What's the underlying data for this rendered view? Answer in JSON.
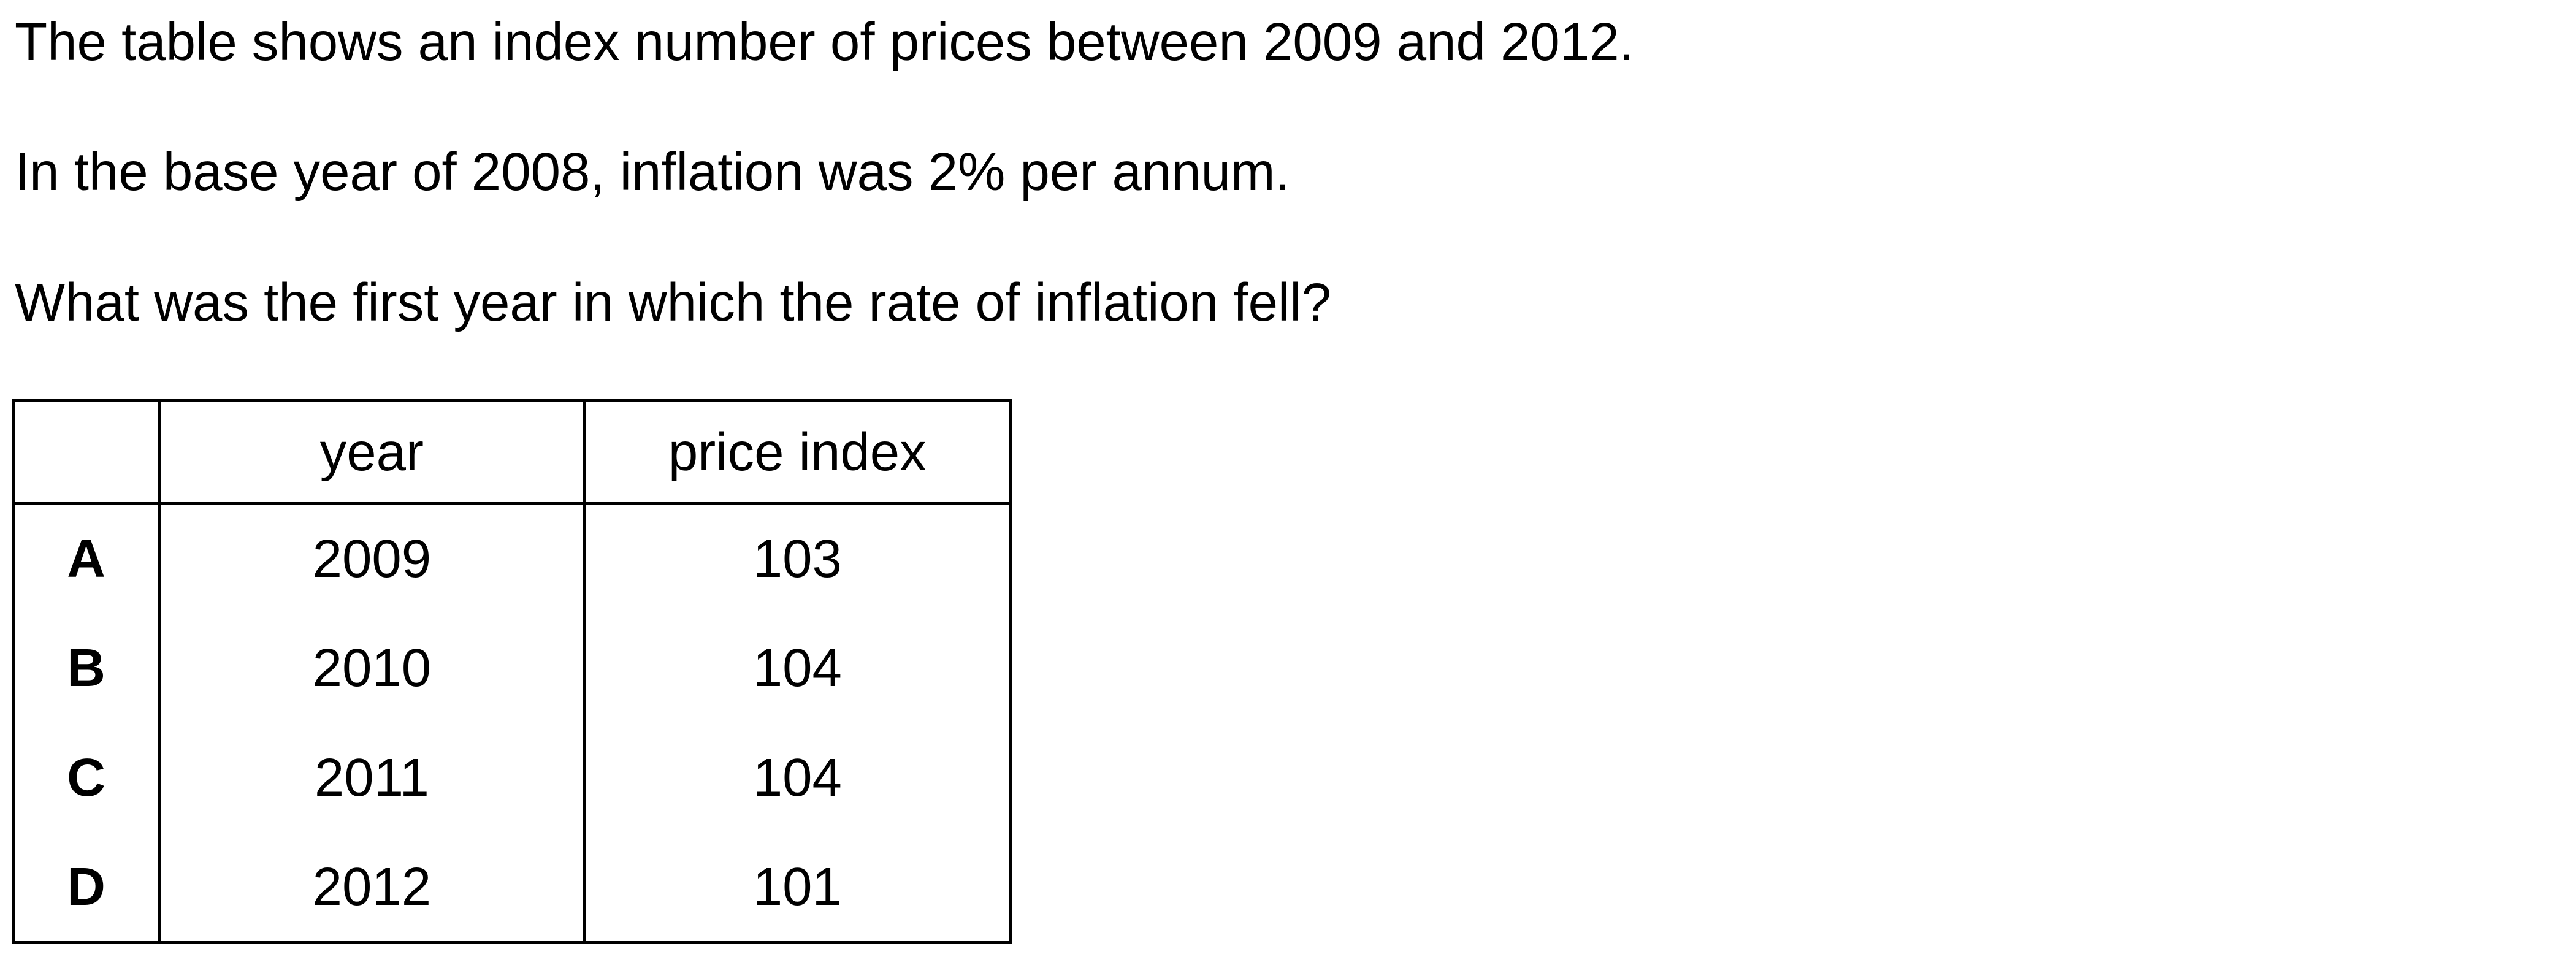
{
  "question": {
    "line1": "The table shows an index number of prices between 2009 and 2012.",
    "line2": "In the base year of 2008, inflation was 2% per annum.",
    "line3": "What was the first year in which the rate of inflation fell?"
  },
  "table": {
    "headers": {
      "letter": "",
      "year": "year",
      "index": "price index"
    },
    "rows": [
      {
        "letter": "A",
        "year": "2009",
        "index": "103"
      },
      {
        "letter": "B",
        "year": "2010",
        "index": "104"
      },
      {
        "letter": "C",
        "year": "2011",
        "index": "104"
      },
      {
        "letter": "D",
        "year": "2012",
        "index": "101"
      }
    ]
  }
}
